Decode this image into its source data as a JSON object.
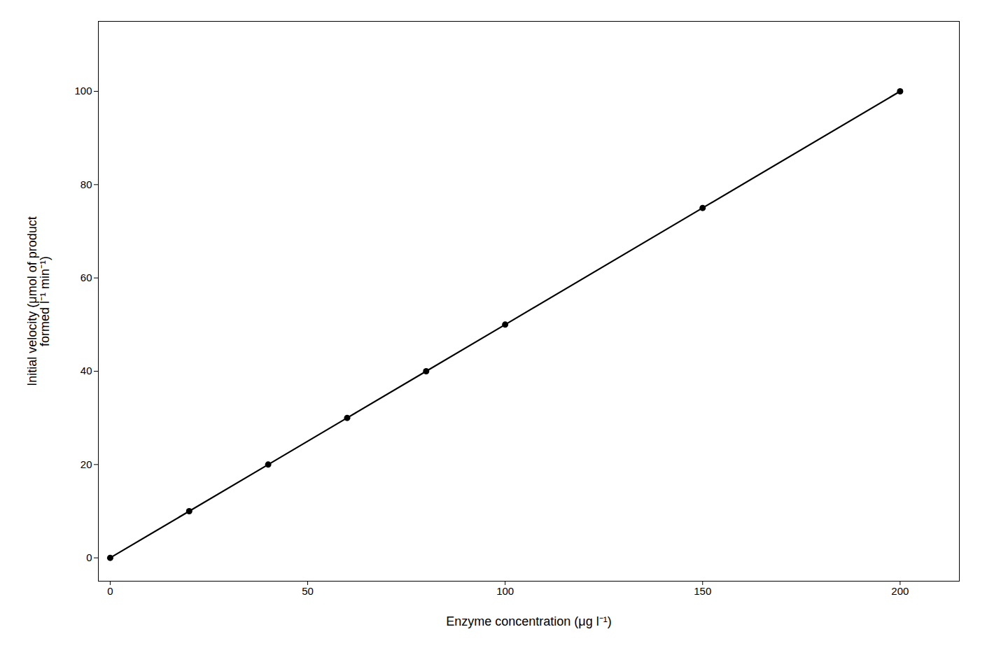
{
  "chart_data": {
    "type": "line",
    "xlabel": "Enzyme concentration (μg l⁻¹)",
    "ylabel": "Initial velocity (μmol of product\nformed l⁻¹ min⁻¹)",
    "x": [
      0,
      20,
      40,
      60,
      80,
      100,
      150,
      200
    ],
    "values": [
      0,
      10,
      20,
      30,
      40,
      50,
      75,
      100
    ],
    "color": "#000000",
    "marker": "circle",
    "xlim": [
      -3,
      215
    ],
    "ylim": [
      -5,
      115
    ],
    "xticks": [
      0,
      50,
      100,
      150,
      200
    ],
    "yticks": [
      0,
      20,
      40,
      60,
      80,
      100
    ],
    "grid": false
  }
}
